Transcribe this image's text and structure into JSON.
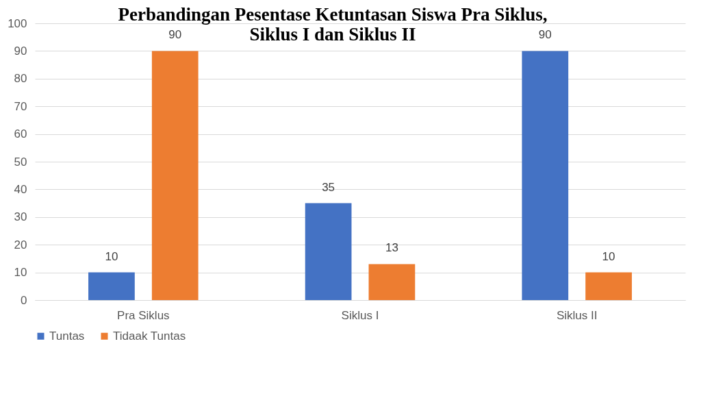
{
  "chart_data": {
    "type": "bar",
    "title": "Perbandingan Pesentase Ketuntasan Siswa Pra Siklus,\nSiklus I dan Siklus II",
    "categories": [
      "Pra Siklus",
      "Siklus I",
      "Siklus II"
    ],
    "series": [
      {
        "name": "Tuntas",
        "color": "#4472c4",
        "values": [
          10,
          35,
          90
        ]
      },
      {
        "name": "Tidaak Tuntas",
        "color": "#ed7d31",
        "values": [
          90,
          13,
          10
        ]
      }
    ],
    "ylim": [
      0,
      100
    ],
    "yticks": [
      0,
      10,
      20,
      30,
      40,
      50,
      60,
      70,
      80,
      90,
      100
    ],
    "grid": "y",
    "legend": "bottom",
    "data_labels": true
  }
}
